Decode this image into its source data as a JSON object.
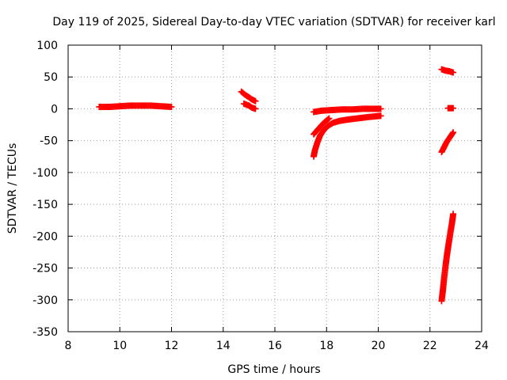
{
  "chart_data": {
    "type": "scatter",
    "title": "Day 119 of 2025, Sidereal Day-to-day VTEC variation (SDTVAR) for receiver karl",
    "xlabel": "GPS time / hours",
    "ylabel": "SDTVAR / TECUs",
    "xlim": [
      8,
      24
    ],
    "ylim": [
      -350,
      100
    ],
    "xticks": [
      8,
      10,
      12,
      14,
      16,
      18,
      20,
      22,
      24
    ],
    "yticks": [
      100,
      50,
      0,
      -50,
      -100,
      -150,
      -200,
      -250,
      -300,
      -350
    ],
    "grid": true,
    "series": [
      {
        "name": "SDTVAR",
        "color": "#ff0000",
        "marker": "plus",
        "segments": [
          {
            "x": [
              9.2,
              9.6,
              10.0,
              10.4,
              10.8,
              11.2,
              11.6,
              12.0
            ],
            "y": [
              3,
              3,
              4,
              5,
              5,
              5,
              4,
              3
            ]
          },
          {
            "x": [
              14.7,
              14.85,
              15.0,
              15.1,
              15.25
            ],
            "y": [
              27,
              22,
              18,
              15,
              12
            ]
          },
          {
            "x": [
              14.8,
              15.0,
              15.1,
              15.25
            ],
            "y": [
              8,
              5,
              2,
              0
            ]
          },
          {
            "x": [
              17.5,
              17.8,
              18.2,
              18.6,
              19.0,
              19.4,
              19.8,
              20.1
            ],
            "y": [
              -5,
              -3,
              -2,
              -1,
              -1,
              0,
              0,
              0
            ]
          },
          {
            "x": [
              17.5,
              17.65,
              17.8,
              17.95,
              18.1
            ],
            "y": [
              -40,
              -33,
              -26,
              -20,
              -15
            ]
          },
          {
            "x": [
              17.5,
              17.55,
              17.65,
              17.75,
              17.9,
              18.05,
              18.25,
              18.5,
              18.8,
              19.2,
              19.6,
              20.1
            ],
            "y": [
              -75,
              -65,
              -52,
              -42,
              -33,
              -27,
              -22,
              -19,
              -17,
              -15,
              -13,
              -11
            ]
          },
          {
            "x": [
              22.45,
              22.6,
              22.75,
              22.9
            ],
            "y": [
              62,
              60,
              59,
              57
            ]
          },
          {
            "x": [
              22.7,
              22.8,
              22.9
            ],
            "y": [
              1,
              1,
              1
            ]
          },
          {
            "x": [
              22.45,
              22.55,
              22.65,
              22.75,
              22.85,
              22.9
            ],
            "y": [
              -68,
              -60,
              -52,
              -46,
              -40,
              -37
            ]
          },
          {
            "x": [
              22.45,
              22.5,
              22.55,
              22.6,
              22.65,
              22.7,
              22.75,
              22.8,
              22.85,
              22.9
            ],
            "y": [
              -302,
              -285,
              -265,
              -248,
              -232,
              -218,
              -205,
              -192,
              -180,
              -165
            ]
          }
        ]
      }
    ]
  }
}
